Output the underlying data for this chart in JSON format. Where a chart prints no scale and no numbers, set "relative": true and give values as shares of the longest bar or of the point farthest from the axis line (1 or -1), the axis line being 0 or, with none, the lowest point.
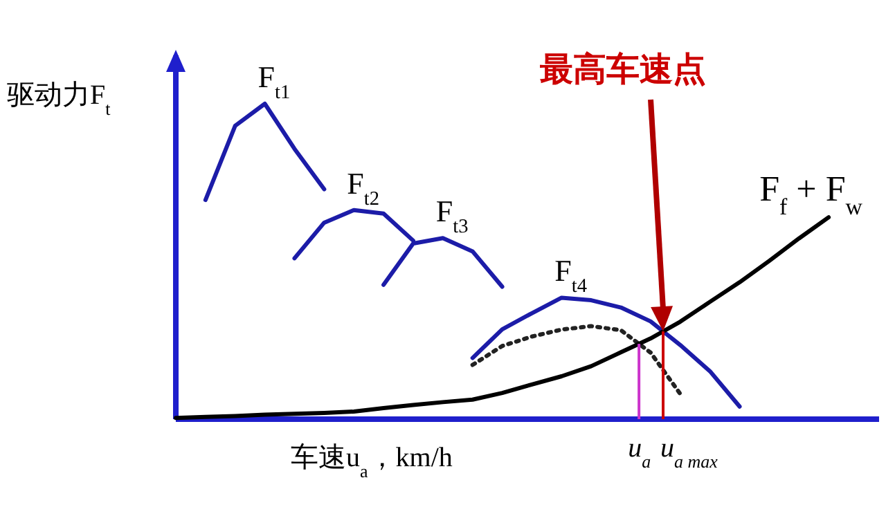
{
  "chart_data": {
    "type": "line",
    "relative": true,
    "xlabel": "车速u$_{a}$，km/h",
    "ylabel": "驱动力F$_{t}$",
    "legend": false,
    "grid": false,
    "marker": "none",
    "line_style": "solid",
    "categories": [
      null,
      null,
      null,
      null,
      null,
      null,
      null,
      null,
      null,
      null,
      null,
      null,
      null,
      null,
      null,
      null,
      null,
      null,
      null,
      null,
      null,
      null,
      null,
      null
    ],
    "series": [
      {
        "name": "F$_{t1}$",
        "color": "#1c1ca8",
        "values": [
          null,
          0.695,
          0.93,
          1.0,
          0.857,
          0.729,
          null,
          null,
          null,
          null,
          null,
          null,
          null,
          null,
          null,
          null,
          null,
          null,
          null,
          null,
          null,
          null,
          null,
          null
        ]
      },
      {
        "name": "F$_{t2}$",
        "color": "#1c1ca8",
        "values": [
          null,
          null,
          null,
          null,
          0.51,
          0.623,
          0.663,
          0.652,
          0.566,
          null,
          null,
          null,
          null,
          null,
          null,
          null,
          null,
          null,
          null,
          null,
          null,
          null,
          null,
          null
        ]
      },
      {
        "name": "F$_{t3}$",
        "color": "#1c1ca8",
        "values": [
          null,
          null,
          null,
          null,
          null,
          null,
          null,
          0.426,
          0.557,
          0.574,
          0.532,
          0.42,
          null,
          null,
          null,
          null,
          null,
          null,
          null,
          null,
          null,
          null,
          null,
          null
        ]
      },
      {
        "name": "F$_{t4}$",
        "color": "#1c1ca8",
        "values": [
          null,
          null,
          null,
          null,
          null,
          null,
          null,
          null,
          null,
          null,
          0.194,
          0.285,
          0.336,
          0.385,
          0.377,
          0.354,
          0.31,
          0.235,
          0.152,
          0.04,
          null,
          null,
          null,
          null
        ]
      },
      {
        "color": "#222222",
        "line_style": "dotted",
        "values": [
          null,
          null,
          null,
          null,
          null,
          null,
          null,
          null,
          null,
          null,
          0.172,
          0.232,
          0.262,
          0.284,
          0.295,
          0.282,
          0.211,
          0.08,
          null,
          null,
          null,
          null,
          null,
          null
        ]
      },
      {
        "name": "F$_{f}$ + F$_{w}$",
        "color": "#000000",
        "values": [
          0.004,
          0.007,
          0.01,
          0.014,
          0.017,
          0.02,
          0.024,
          0.035,
          0.045,
          0.054,
          0.062,
          0.083,
          0.11,
          0.136,
          0.168,
          0.212,
          0.256,
          0.309,
          0.372,
          0.434,
          0.502,
          0.573,
          0.64,
          null
        ]
      }
    ],
    "annotations": [
      "最高车速点",
      "u$_{a}$",
      "u$_{a max}$"
    ]
  }
}
